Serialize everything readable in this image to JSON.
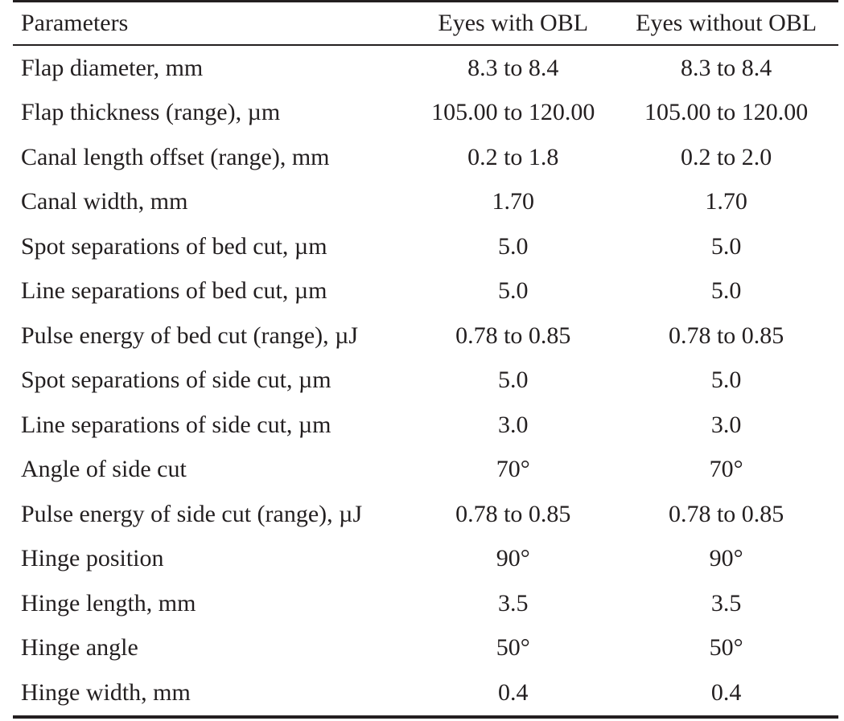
{
  "table": {
    "headers": [
      "Parameters",
      "Eyes with OBL",
      "Eyes without OBL"
    ],
    "rows": [
      [
        "Flap diameter, mm",
        "8.3 to 8.4",
        "8.3 to 8.4"
      ],
      [
        "Flap thickness (range), µm",
        "105.00 to 120.00",
        "105.00 to 120.00"
      ],
      [
        "Canal length offset (range), mm",
        "0.2 to 1.8",
        "0.2 to 2.0"
      ],
      [
        "Canal width, mm",
        "1.70",
        "1.70"
      ],
      [
        "Spot separations of bed cut, µm",
        "5.0",
        "5.0"
      ],
      [
        "Line separations of bed cut, µm",
        "5.0",
        "5.0"
      ],
      [
        "Pulse energy of bed cut (range), µJ",
        "0.78 to 0.85",
        "0.78 to 0.85"
      ],
      [
        "Spot separations of side cut, µm",
        "5.0",
        "5.0"
      ],
      [
        "Line separations of side cut, µm",
        "3.0",
        "3.0"
      ],
      [
        "Angle of side cut",
        "70°",
        "70°"
      ],
      [
        "Pulse energy of side cut (range), µJ",
        "0.78 to 0.85",
        "0.78 to 0.85"
      ],
      [
        "Hinge position",
        "90°",
        "90°"
      ],
      [
        "Hinge length, mm",
        "3.5",
        "3.5"
      ],
      [
        "Hinge angle",
        "50°",
        "50°"
      ],
      [
        "Hinge width, mm",
        "0.4",
        "0.4"
      ]
    ]
  }
}
